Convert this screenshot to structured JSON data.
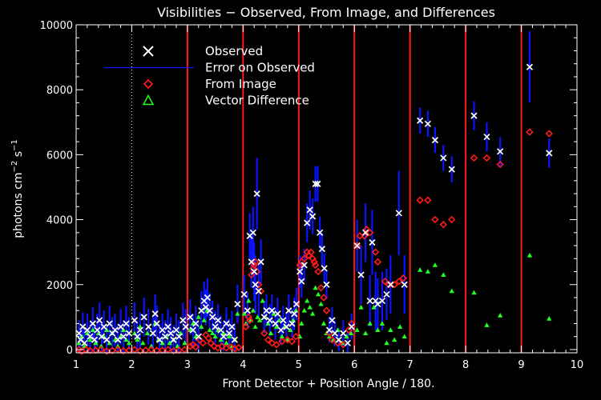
{
  "chart_data": {
    "type": "scatter",
    "title": "Visibilities − Observed, From Image, and Differences",
    "xlabel": "Front Detector + Position Angle / 180.",
    "ylabel_base": "photons cm",
    "ylabel_sup1": "−2",
    "ylabel_mid": " s",
    "ylabel_sup2": "−1",
    "xlim": [
      1,
      10
    ],
    "ylim": [
      -100,
      10000
    ],
    "x_ticks": [
      1,
      2,
      3,
      4,
      5,
      6,
      7,
      8,
      9,
      10
    ],
    "y_ticks": [
      0,
      2000,
      4000,
      6000,
      8000,
      10000
    ],
    "dotted_vline": 2,
    "red_vlines": [
      3,
      4,
      5,
      6,
      7,
      8,
      9
    ],
    "colors": {
      "observed": "#ffffff",
      "error": "#0a14ff",
      "image": "#ff1a1a",
      "diff": "#22ff22",
      "axes": "#ffffff",
      "divider": "#ff1a1a"
    },
    "legend": [
      {
        "label": "Observed",
        "symbol": "x"
      },
      {
        "label": "Error on Observed",
        "symbol": "line"
      },
      {
        "label": "From Image",
        "symbol": "diamond"
      },
      {
        "label": "Vector Difference",
        "symbol": "triangle"
      }
    ],
    "observed": [
      [
        1.05,
        500,
        400
      ],
      [
        1.08,
        300,
        400
      ],
      [
        1.12,
        700,
        450
      ],
      [
        1.15,
        200,
        400
      ],
      [
        1.2,
        600,
        500
      ],
      [
        1.25,
        400,
        450
      ],
      [
        1.3,
        800,
        500
      ],
      [
        1.33,
        300,
        450
      ],
      [
        1.38,
        600,
        500
      ],
      [
        1.42,
        900,
        550
      ],
      [
        1.46,
        400,
        450
      ],
      [
        1.5,
        700,
        500
      ],
      [
        1.55,
        300,
        450
      ],
      [
        1.6,
        800,
        550
      ],
      [
        1.65,
        500,
        500
      ],
      [
        1.7,
        600,
        500
      ],
      [
        1.75,
        300,
        450
      ],
      [
        1.8,
        700,
        550
      ],
      [
        1.85,
        400,
        500
      ],
      [
        1.9,
        800,
        550
      ],
      [
        1.95,
        500,
        500
      ],
      [
        2.05,
        900,
        550
      ],
      [
        2.1,
        400,
        500
      ],
      [
        2.15,
        600,
        550
      ],
      [
        2.22,
        1000,
        600
      ],
      [
        2.3,
        700,
        550
      ],
      [
        2.38,
        500,
        500
      ],
      [
        2.42,
        1100,
        600
      ],
      [
        2.45,
        800,
        550
      ],
      [
        2.5,
        300,
        500
      ],
      [
        2.55,
        600,
        500
      ],
      [
        2.6,
        400,
        500
      ],
      [
        2.65,
        700,
        550
      ],
      [
        2.7,
        500,
        500
      ],
      [
        2.75,
        300,
        450
      ],
      [
        2.8,
        600,
        500
      ],
      [
        2.85,
        400,
        500
      ],
      [
        2.92,
        900,
        550
      ],
      [
        2.97,
        700,
        550
      ],
      [
        3.05,
        1000,
        550
      ],
      [
        3.1,
        600,
        500
      ],
      [
        3.15,
        800,
        550
      ],
      [
        3.2,
        400,
        500
      ],
      [
        3.25,
        1200,
        600
      ],
      [
        3.3,
        1500,
        600
      ],
      [
        3.33,
        1300,
        550
      ],
      [
        3.36,
        1600,
        600
      ],
      [
        3.4,
        1200,
        550
      ],
      [
        3.45,
        1000,
        500
      ],
      [
        3.5,
        700,
        500
      ],
      [
        3.55,
        900,
        500
      ],
      [
        3.6,
        600,
        450
      ],
      [
        3.65,
        400,
        450
      ],
      [
        3.7,
        800,
        500
      ],
      [
        3.75,
        500,
        450
      ],
      [
        3.8,
        700,
        500
      ],
      [
        3.85,
        300,
        450
      ],
      [
        3.9,
        1400,
        600
      ],
      [
        4.02,
        1700,
        600
      ],
      [
        4.08,
        1200,
        550
      ],
      [
        4.12,
        3500,
        700
      ],
      [
        4.15,
        2700,
        800
      ],
      [
        4.18,
        3600,
        800
      ],
      [
        4.2,
        2400,
        900
      ],
      [
        4.22,
        2000,
        900
      ],
      [
        4.25,
        4800,
        1100
      ],
      [
        4.28,
        1800,
        800
      ],
      [
        4.32,
        2700,
        700
      ],
      [
        4.38,
        1000,
        500
      ],
      [
        4.42,
        1200,
        500
      ],
      [
        4.48,
        900,
        500
      ],
      [
        4.52,
        1200,
        500
      ],
      [
        4.58,
        800,
        500
      ],
      [
        4.62,
        1100,
        500
      ],
      [
        4.68,
        600,
        450
      ],
      [
        4.72,
        900,
        450
      ],
      [
        4.78,
        700,
        450
      ],
      [
        4.82,
        1200,
        500
      ],
      [
        4.88,
        800,
        450
      ],
      [
        4.92,
        1100,
        500
      ],
      [
        4.96,
        1400,
        500
      ],
      [
        5.02,
        2400,
        500
      ],
      [
        5.05,
        2100,
        500
      ],
      [
        5.1,
        2600,
        500
      ],
      [
        5.15,
        3900,
        600
      ],
      [
        5.2,
        4300,
        600
      ],
      [
        5.25,
        4100,
        550
      ],
      [
        5.3,
        5100,
        550
      ],
      [
        5.34,
        5100,
        550
      ],
      [
        5.38,
        3600,
        500
      ],
      [
        5.42,
        3100,
        500
      ],
      [
        5.46,
        2500,
        450
      ],
      [
        5.5,
        2000,
        450
      ],
      [
        5.55,
        600,
        400
      ],
      [
        5.6,
        900,
        400
      ],
      [
        5.65,
        500,
        400
      ],
      [
        5.72,
        300,
        350
      ],
      [
        5.8,
        500,
        400
      ],
      [
        5.88,
        200,
        350
      ],
      [
        5.95,
        700,
        400
      ],
      [
        6.05,
        3200,
        800
      ],
      [
        6.12,
        2300,
        900
      ],
      [
        6.2,
        3600,
        900
      ],
      [
        6.28,
        1500,
        800
      ],
      [
        6.32,
        3300,
        1000
      ],
      [
        6.38,
        1500,
        900
      ],
      [
        6.42,
        1400,
        800
      ],
      [
        6.5,
        1500,
        900
      ],
      [
        6.58,
        1700,
        800
      ],
      [
        6.65,
        2000,
        900
      ],
      [
        6.8,
        4200,
        1300
      ],
      [
        6.9,
        2000,
        900
      ],
      [
        7.18,
        7050,
        400
      ],
      [
        7.32,
        6950,
        400
      ],
      [
        7.45,
        6450,
        400
      ],
      [
        7.6,
        5900,
        400
      ],
      [
        7.75,
        5550,
        400
      ],
      [
        8.15,
        7200,
        450
      ],
      [
        8.38,
        6550,
        450
      ],
      [
        8.62,
        6100,
        450
      ],
      [
        9.15,
        8700,
        1100
      ],
      [
        9.5,
        6050,
        450
      ]
    ],
    "image": [
      [
        1.05,
        0
      ],
      [
        1.1,
        -50
      ],
      [
        1.18,
        0
      ],
      [
        1.25,
        -30
      ],
      [
        1.35,
        -20
      ],
      [
        1.45,
        0
      ],
      [
        1.55,
        -50
      ],
      [
        1.65,
        -30
      ],
      [
        1.75,
        0
      ],
      [
        1.85,
        -40
      ],
      [
        1.95,
        -20
      ],
      [
        2.05,
        0
      ],
      [
        2.15,
        -40
      ],
      [
        2.25,
        -20
      ],
      [
        2.35,
        0
      ],
      [
        2.45,
        -30
      ],
      [
        2.55,
        -20
      ],
      [
        2.65,
        0
      ],
      [
        2.75,
        -40
      ],
      [
        2.85,
        -20
      ],
      [
        2.95,
        0
      ],
      [
        3.05,
        100
      ],
      [
        3.1,
        150
      ],
      [
        3.15,
        80
      ],
      [
        3.22,
        300
      ],
      [
        3.28,
        200
      ],
      [
        3.33,
        450
      ],
      [
        3.38,
        350
      ],
      [
        3.42,
        200
      ],
      [
        3.48,
        100
      ],
      [
        3.55,
        50
      ],
      [
        3.62,
        100
      ],
      [
        3.7,
        50
      ],
      [
        3.78,
        80
      ],
      [
        3.85,
        30
      ],
      [
        3.92,
        60
      ],
      [
        4.05,
        700
      ],
      [
        4.1,
        1000
      ],
      [
        4.12,
        900
      ],
      [
        4.15,
        2300
      ],
      [
        4.18,
        2500
      ],
      [
        4.2,
        2600
      ],
      [
        4.22,
        2700
      ],
      [
        4.25,
        2400
      ],
      [
        4.28,
        2000
      ],
      [
        4.32,
        1800
      ],
      [
        4.38,
        500
      ],
      [
        4.45,
        300
      ],
      [
        4.52,
        200
      ],
      [
        4.6,
        150
      ],
      [
        4.7,
        250
      ],
      [
        4.8,
        300
      ],
      [
        4.88,
        250
      ],
      [
        4.95,
        400
      ],
      [
        5.02,
        2600
      ],
      [
        5.05,
        2700
      ],
      [
        5.1,
        2800
      ],
      [
        5.15,
        3000
      ],
      [
        5.18,
        2900
      ],
      [
        5.22,
        3000
      ],
      [
        5.25,
        2800
      ],
      [
        5.28,
        2700
      ],
      [
        5.3,
        2600
      ],
      [
        5.35,
        2400
      ],
      [
        5.4,
        1900
      ],
      [
        5.45,
        1600
      ],
      [
        5.5,
        1200
      ],
      [
        5.55,
        500
      ],
      [
        5.6,
        300
      ],
      [
        5.7,
        200
      ],
      [
        5.8,
        150
      ],
      [
        5.9,
        600
      ],
      [
        5.95,
        800
      ],
      [
        6.05,
        3200
      ],
      [
        6.1,
        3500
      ],
      [
        6.18,
        3500
      ],
      [
        6.22,
        3700
      ],
      [
        6.28,
        3600
      ],
      [
        6.38,
        3000
      ],
      [
        6.42,
        2700
      ],
      [
        6.55,
        2100
      ],
      [
        6.62,
        2000
      ],
      [
        6.72,
        2000
      ],
      [
        6.8,
        2100
      ],
      [
        6.88,
        2200
      ],
      [
        7.18,
        4600
      ],
      [
        7.32,
        4600
      ],
      [
        7.45,
        4000
      ],
      [
        7.6,
        3850
      ],
      [
        7.75,
        4000
      ],
      [
        8.15,
        5900
      ],
      [
        8.38,
        5900
      ],
      [
        8.62,
        5700
      ],
      [
        9.15,
        6700
      ],
      [
        9.5,
        6650
      ]
    ],
    "diff": [
      [
        1.05,
        200
      ],
      [
        1.1,
        400
      ],
      [
        1.15,
        100
      ],
      [
        1.2,
        500
      ],
      [
        1.25,
        300
      ],
      [
        1.3,
        600
      ],
      [
        1.35,
        200
      ],
      [
        1.4,
        500
      ],
      [
        1.45,
        100
      ],
      [
        1.5,
        400
      ],
      [
        1.55,
        600
      ],
      [
        1.6,
        200
      ],
      [
        1.65,
        500
      ],
      [
        1.7,
        300
      ],
      [
        1.75,
        100
      ],
      [
        1.8,
        400
      ],
      [
        1.85,
        600
      ],
      [
        1.9,
        300
      ],
      [
        1.95,
        200
      ],
      [
        2.05,
        500
      ],
      [
        2.1,
        300
      ],
      [
        2.15,
        700
      ],
      [
        2.2,
        200
      ],
      [
        2.28,
        500
      ],
      [
        2.35,
        100
      ],
      [
        2.42,
        800
      ],
      [
        2.48,
        300
      ],
      [
        2.55,
        200
      ],
      [
        2.62,
        400
      ],
      [
        2.68,
        200
      ],
      [
        2.75,
        300
      ],
      [
        2.82,
        100
      ],
      [
        2.88,
        500
      ],
      [
        2.95,
        200
      ],
      [
        3.05,
        600
      ],
      [
        3.1,
        800
      ],
      [
        3.15,
        400
      ],
      [
        3.2,
        1000
      ],
      [
        3.25,
        700
      ],
      [
        3.3,
        900
      ],
      [
        3.35,
        1200
      ],
      [
        3.4,
        600
      ],
      [
        3.45,
        500
      ],
      [
        3.5,
        400
      ],
      [
        3.55,
        600
      ],
      [
        3.6,
        300
      ],
      [
        3.65,
        500
      ],
      [
        3.7,
        200
      ],
      [
        3.75,
        400
      ],
      [
        3.8,
        100
      ],
      [
        3.85,
        300
      ],
      [
        3.9,
        1100
      ],
      [
        4.02,
        1100
      ],
      [
        4.05,
        800
      ],
      [
        4.1,
        1500
      ],
      [
        4.14,
        900
      ],
      [
        4.18,
        1200
      ],
      [
        4.22,
        700
      ],
      [
        4.26,
        1000
      ],
      [
        4.3,
        900
      ],
      [
        4.35,
        1500
      ],
      [
        4.4,
        1000
      ],
      [
        4.45,
        800
      ],
      [
        4.5,
        500
      ],
      [
        4.55,
        1100
      ],
      [
        4.6,
        700
      ],
      [
        4.65,
        900
      ],
      [
        4.7,
        400
      ],
      [
        4.75,
        700
      ],
      [
        4.8,
        300
      ],
      [
        4.85,
        600
      ],
      [
        4.9,
        900
      ],
      [
        4.95,
        1200
      ],
      [
        5.02,
        400
      ],
      [
        5.05,
        800
      ],
      [
        5.1,
        1200
      ],
      [
        5.15,
        1500
      ],
      [
        5.2,
        1300
      ],
      [
        5.25,
        1100
      ],
      [
        5.3,
        1900
      ],
      [
        5.35,
        1700
      ],
      [
        5.4,
        1400
      ],
      [
        5.45,
        800
      ],
      [
        5.5,
        500
      ],
      [
        5.55,
        400
      ],
      [
        5.62,
        300
      ],
      [
        5.7,
        600
      ],
      [
        5.78,
        200
      ],
      [
        5.86,
        400
      ],
      [
        5.94,
        500
      ],
      [
        6.05,
        600
      ],
      [
        6.12,
        1300
      ],
      [
        6.2,
        500
      ],
      [
        6.28,
        800
      ],
      [
        6.35,
        1300
      ],
      [
        6.42,
        600
      ],
      [
        6.5,
        800
      ],
      [
        6.58,
        200
      ],
      [
        6.65,
        600
      ],
      [
        6.72,
        300
      ],
      [
        6.82,
        700
      ],
      [
        6.9,
        400
      ],
      [
        7.18,
        2450
      ],
      [
        7.32,
        2400
      ],
      [
        7.45,
        2600
      ],
      [
        7.6,
        2300
      ],
      [
        7.75,
        1800
      ],
      [
        8.15,
        1750
      ],
      [
        8.38,
        750
      ],
      [
        8.62,
        1050
      ],
      [
        9.15,
        2900
      ],
      [
        9.5,
        950
      ]
    ]
  }
}
